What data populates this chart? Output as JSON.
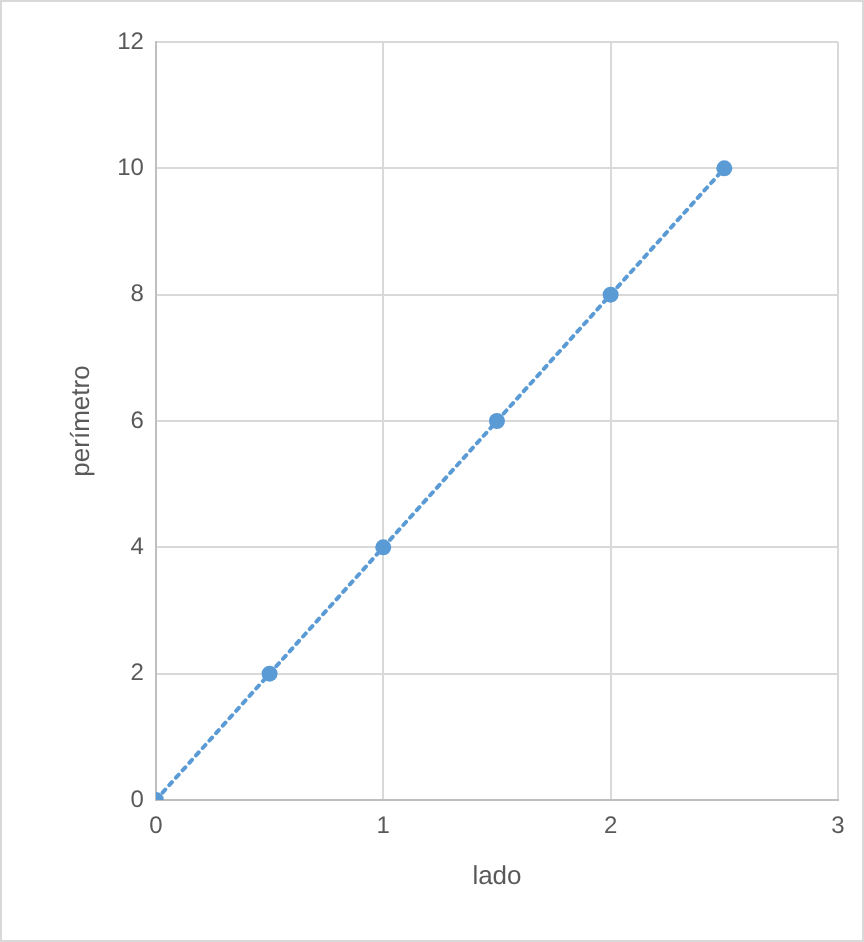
{
  "chart_data": {
    "type": "line",
    "xlabel": "lado",
    "ylabel": "perímetro",
    "x": [
      0,
      0.5,
      1,
      1.5,
      2,
      2.5
    ],
    "series": [
      {
        "color": "#5b9bd5",
        "values": [
          0,
          2,
          4,
          6,
          8,
          10
        ]
      }
    ],
    "xlim": [
      0,
      3
    ],
    "xticks": [
      0,
      1,
      2,
      3
    ],
    "ylim": [
      0,
      12
    ],
    "yticks": [
      0,
      2,
      4,
      6,
      8,
      10,
      12
    ],
    "grid": true,
    "legend": false,
    "marker": "circle",
    "line_style": "dotted"
  }
}
